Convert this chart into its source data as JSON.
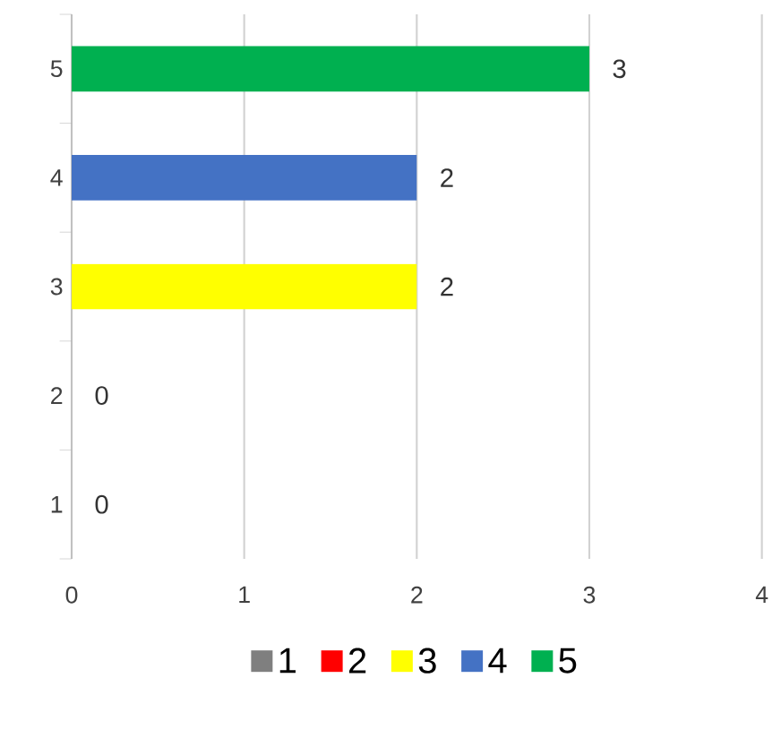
{
  "chart_data": {
    "type": "bar",
    "orientation": "horizontal",
    "categories": [
      "5",
      "4",
      "3",
      "2",
      "1"
    ],
    "series": [
      {
        "name": "1",
        "color": "#7f7f7f",
        "values": [
          null,
          null,
          null,
          null,
          0
        ]
      },
      {
        "name": "2",
        "color": "#ff0000",
        "values": [
          null,
          null,
          null,
          0,
          null
        ]
      },
      {
        "name": "3",
        "color": "#ffff00",
        "values": [
          null,
          null,
          2,
          null,
          null
        ]
      },
      {
        "name": "4",
        "color": "#4472c4",
        "values": [
          null,
          2,
          null,
          null,
          null
        ]
      },
      {
        "name": "5",
        "color": "#00b050",
        "values": [
          3,
          null,
          null,
          null,
          null
        ]
      }
    ],
    "xlim": [
      0,
      4
    ],
    "xticks": [
      0,
      1,
      2,
      3,
      4
    ],
    "grid": "x",
    "legend": "bottom",
    "data_labels": true
  }
}
